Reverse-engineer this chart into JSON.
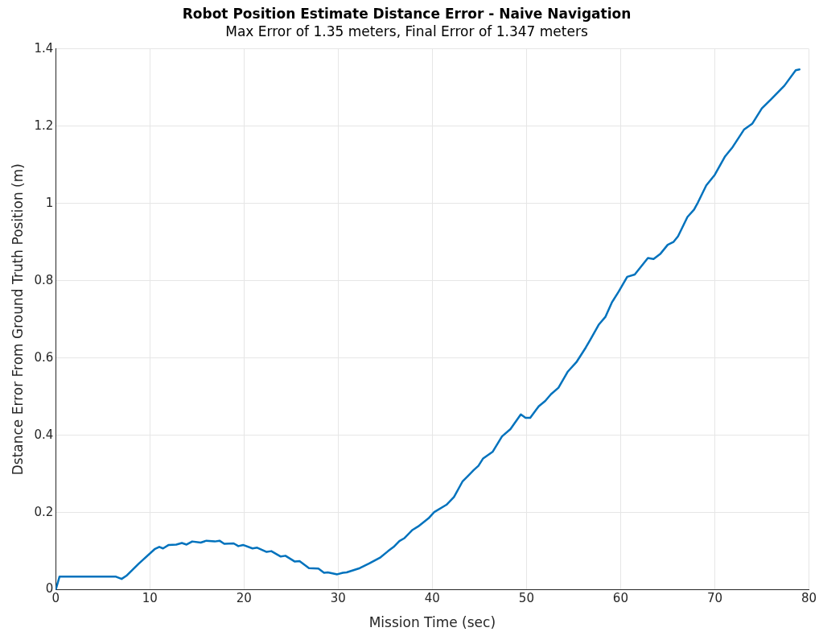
{
  "chart_data": {
    "type": "line",
    "title": "Robot Position Estimate Distance Error - Naive Navigation",
    "subtitle": "Max Error of 1.35 meters, Final Error of 1.347 meters",
    "xlabel": "Mission Time (sec)",
    "ylabel": "Dstance Error From Ground Truth Position (m)",
    "x": [
      0,
      0.4,
      6.4,
      7.0,
      7.5,
      8.8,
      10.5,
      11.0,
      11.4,
      12.0,
      12.8,
      13.4,
      13.9,
      14.5,
      15.4,
      16.0,
      16.9,
      17.4,
      17.9,
      18.9,
      19.4,
      19.9,
      20.9,
      21.4,
      22.4,
      22.9,
      23.9,
      24.4,
      25.4,
      25.9,
      26.9,
      27.9,
      28.5,
      28.9,
      29.9,
      30.5,
      30.9,
      32.3,
      33.3,
      34.5,
      35.3,
      35.9,
      36.5,
      37.0,
      37.9,
      38.5,
      39.6,
      40.2,
      41.5,
      42.3,
      43.2,
      43.8,
      44.4,
      44.9,
      45.4,
      46.4,
      47.4,
      48.3,
      49.4,
      49.9,
      50.4,
      51.3,
      52.0,
      52.6,
      53.4,
      54.4,
      55.3,
      56.3,
      56.8,
      57.7,
      58.4,
      59.1,
      59.8,
      60.7,
      61.5,
      62.9,
      63.5,
      64.2,
      65.0,
      65.6,
      66.1,
      67.1,
      67.8,
      68.2,
      69.1,
      70.0,
      71.1,
      71.9,
      73.1,
      74.0,
      75.0,
      76.0,
      77.4,
      78.6,
      79.0
    ],
    "series": [
      {
        "color": "#0072bd",
        "values": [
          0,
          0.034,
          0.034,
          0.028,
          0.036,
          0.067,
          0.105,
          0.111,
          0.107,
          0.116,
          0.117,
          0.121,
          0.117,
          0.125,
          0.122,
          0.127,
          0.125,
          0.127,
          0.119,
          0.12,
          0.113,
          0.116,
          0.107,
          0.109,
          0.098,
          0.1,
          0.086,
          0.088,
          0.073,
          0.074,
          0.056,
          0.055,
          0.044,
          0.045,
          0.04,
          0.044,
          0.045,
          0.056,
          0.068,
          0.084,
          0.1,
          0.111,
          0.126,
          0.133,
          0.155,
          0.164,
          0.185,
          0.201,
          0.22,
          0.24,
          0.28,
          0.295,
          0.31,
          0.321,
          0.34,
          0.357,
          0.397,
          0.416,
          0.454,
          0.445,
          0.445,
          0.475,
          0.489,
          0.506,
          0.523,
          0.565,
          0.589,
          0.627,
          0.648,
          0.687,
          0.707,
          0.745,
          0.772,
          0.81,
          0.816,
          0.859,
          0.856,
          0.869,
          0.893,
          0.9,
          0.915,
          0.965,
          0.984,
          1.002,
          1.047,
          1.074,
          1.122,
          1.146,
          1.191,
          1.207,
          1.246,
          1.27,
          1.305,
          1.345,
          1.347
        ]
      }
    ],
    "xlim": [
      0,
      80
    ],
    "xticks": [
      0,
      10,
      20,
      30,
      40,
      50,
      60,
      70,
      80
    ],
    "ylim": [
      0,
      1.4
    ],
    "yticks": [
      0,
      0.2,
      0.4,
      0.6,
      0.8,
      1,
      1.2,
      1.4
    ],
    "grid": true,
    "legend": false,
    "marker": "none",
    "line_style": "solid"
  }
}
